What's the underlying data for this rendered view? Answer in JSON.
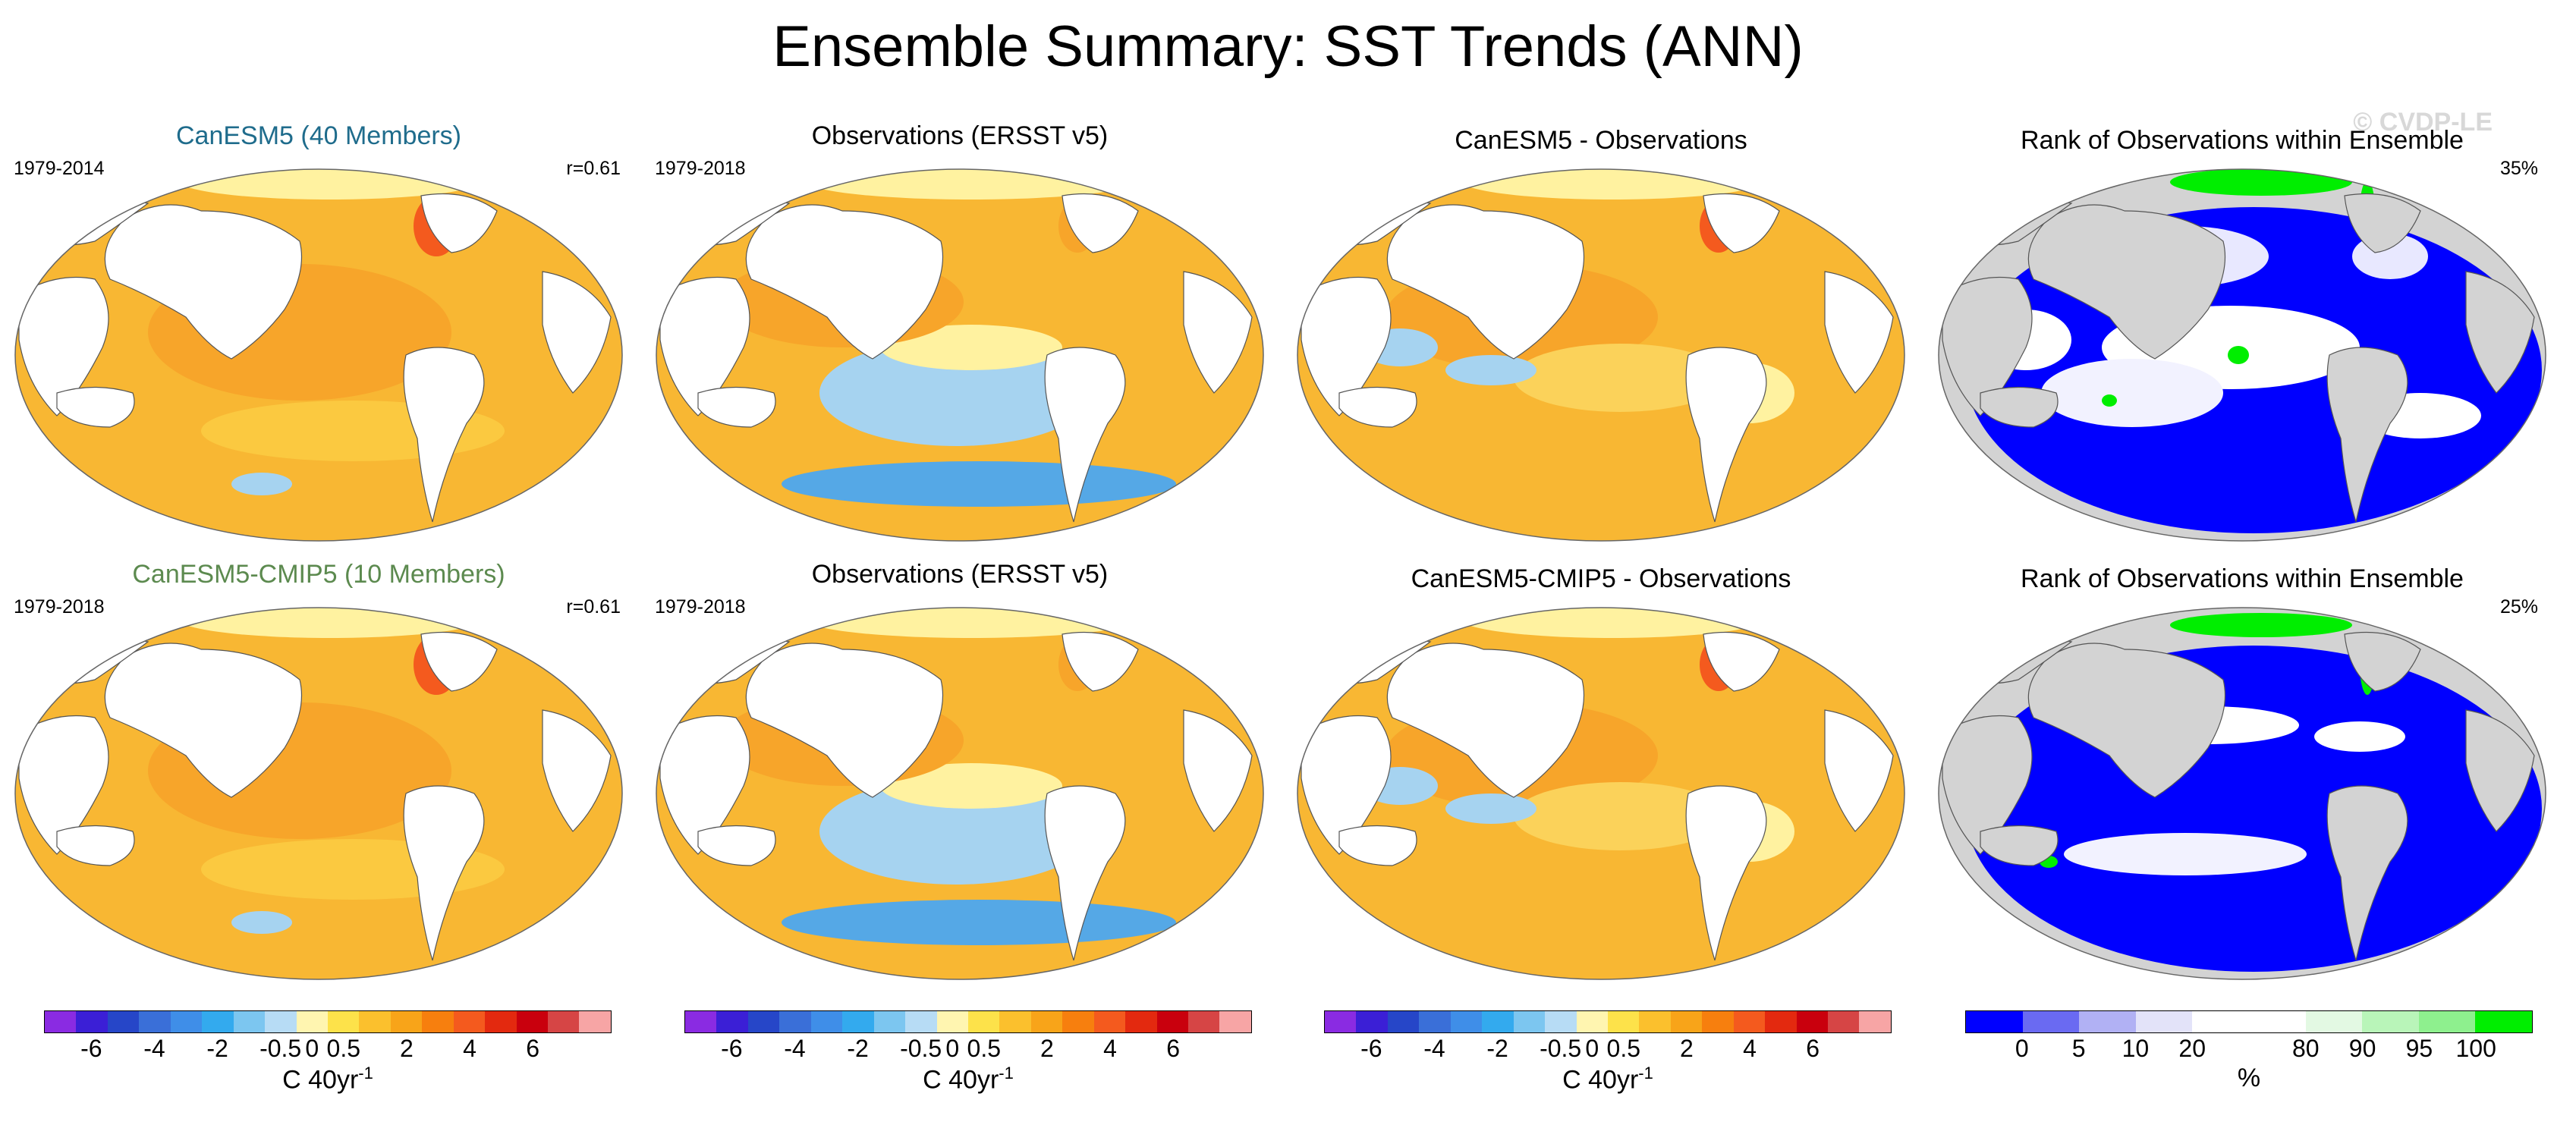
{
  "title": "Ensemble Summary: SST Trends (ANN)",
  "watermark": "© CVDP-LE",
  "colors": {
    "land": "#ffffff",
    "land_rank": "#d3d3d3",
    "ocean_warm": "#f8b733",
    "ocean_light": "#fbd25a",
    "cool": "#a6d3f0",
    "deep_cool": "#55a8e6",
    "hot": "#f45a1e",
    "rank_blue": "#0000ff",
    "rank_green": "#00ee00",
    "title_blue": "#1f6c8c",
    "title_green": "#5c8a4f"
  },
  "rows": [
    {
      "panels": [
        {
          "title": "CanESM5 (40 Members)",
          "title_color": "#1f6c8c",
          "left": "1979-2014",
          "right": "r=0.61",
          "kind": "model"
        },
        {
          "title": "Observations (ERSST v5)",
          "title_color": "#000000",
          "left": "1979-2018",
          "right": "",
          "kind": "obs"
        },
        {
          "title": "CanESM5 - Observations",
          "title_color": "#000000",
          "left": "",
          "right": "",
          "kind": "diff"
        },
        {
          "title": "Rank of Observations within Ensemble",
          "title_color": "#000000",
          "left": "",
          "right": "35%",
          "kind": "rank1"
        }
      ]
    },
    {
      "panels": [
        {
          "title": "CanESM5-CMIP5 (10 Members)",
          "title_color": "#5c8a4f",
          "left": "1979-2018",
          "right": "r=0.61",
          "kind": "model"
        },
        {
          "title": "Observations (ERSST v5)",
          "title_color": "#000000",
          "left": "1979-2018",
          "right": "",
          "kind": "obs"
        },
        {
          "title": "CanESM5-CMIP5 - Observations",
          "title_color": "#000000",
          "left": "",
          "right": "",
          "kind": "diff"
        },
        {
          "title": "Rank of Observations within Ensemble",
          "title_color": "#000000",
          "left": "",
          "right": "25%",
          "kind": "rank2"
        }
      ]
    }
  ],
  "sst_colorbar": {
    "colors": [
      "#8a2be2",
      "#3b1fd6",
      "#2646c8",
      "#3a6fd8",
      "#3f8ee8",
      "#33aaee",
      "#7cc6f0",
      "#b7dcf5",
      "#fff5b0",
      "#fde24a",
      "#fbc02d",
      "#f8a419",
      "#f77f0e",
      "#f45a1e",
      "#e3290f",
      "#c9000d",
      "#d64545",
      "#f7a5a5"
    ],
    "ticks": [
      {
        "label": "-6",
        "pos": 1.5
      },
      {
        "label": "-4",
        "pos": 3.5
      },
      {
        "label": "-2",
        "pos": 5.5
      },
      {
        "label": "-0.5",
        "pos": 7.5
      },
      {
        "label": "0",
        "pos": 8.5
      },
      {
        "label": "0.5",
        "pos": 9.5
      },
      {
        "label": "2",
        "pos": 11.5
      },
      {
        "label": "4",
        "pos": 13.5
      },
      {
        "label": "6",
        "pos": 15.5
      }
    ],
    "units": "C 40yr",
    "units_sup": "-1"
  },
  "rank_colorbar": {
    "colors": [
      "#0000ff",
      "#6a6af2",
      "#b1b1f4",
      "#e3e3f9",
      "#ffffff",
      "#ffffff",
      "#e3f9e3",
      "#b9f5b9",
      "#8ef08e",
      "#00ee00"
    ],
    "ticks": [
      {
        "label": "0",
        "pos": 1
      },
      {
        "label": "5",
        "pos": 2
      },
      {
        "label": "10",
        "pos": 3
      },
      {
        "label": "20",
        "pos": 4
      },
      {
        "label": "80",
        "pos": 6
      },
      {
        "label": "90",
        "pos": 7
      },
      {
        "label": "95",
        "pos": 8
      },
      {
        "label": "100",
        "pos": 9
      }
    ],
    "units": "%"
  }
}
